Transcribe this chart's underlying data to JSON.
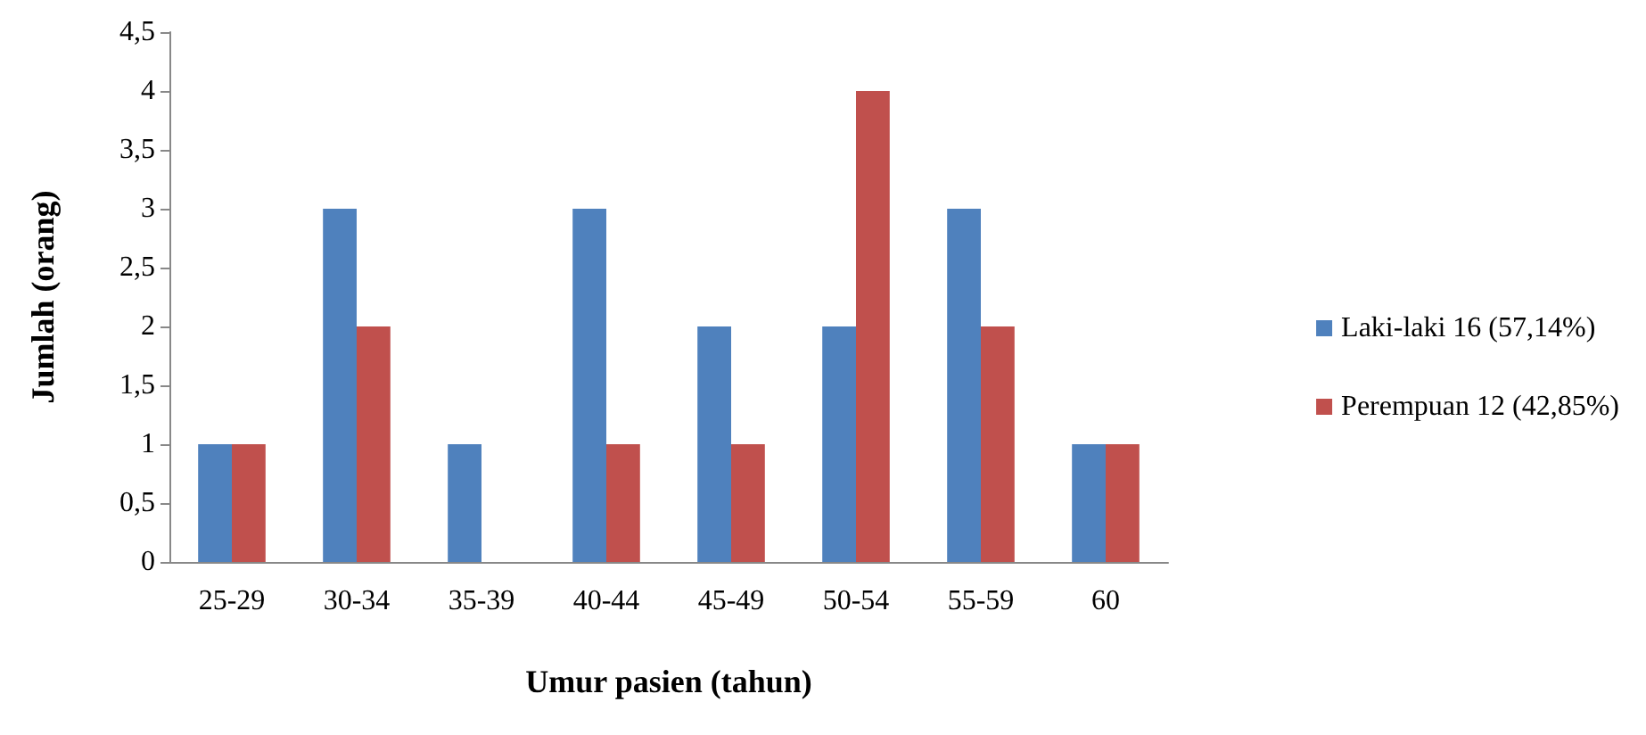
{
  "chart_data": {
    "type": "bar",
    "xlabel": "Umur pasien (tahun)",
    "ylabel": "Jumlah (orang)",
    "categories": [
      "25-29",
      "30-34",
      "35-39",
      "40-44",
      "45-49",
      "50-54",
      "55-59",
      "60"
    ],
    "series": [
      {
        "name": "Laki-laki 16 (57,14%)",
        "color": "#4f81bd",
        "values": [
          1,
          3,
          1,
          3,
          2,
          2,
          3,
          1
        ]
      },
      {
        "name": "Perempuan 12 (42,85%)",
        "color": "#c0504d",
        "values": [
          1,
          2,
          0,
          1,
          1,
          4,
          2,
          1
        ]
      }
    ],
    "ylim": [
      0,
      4.5
    ],
    "yticks": [
      0,
      {
        "value": 0.5,
        "label": "0,5"
      },
      1,
      {
        "value": 1.5,
        "label": "1,5"
      },
      2,
      {
        "value": 2.5,
        "label": "2,5"
      },
      3,
      {
        "value": 3.5,
        "label": "3,5"
      },
      4,
      {
        "value": 4.5,
        "label": "4,5"
      }
    ],
    "grid": false,
    "legend": "right"
  }
}
